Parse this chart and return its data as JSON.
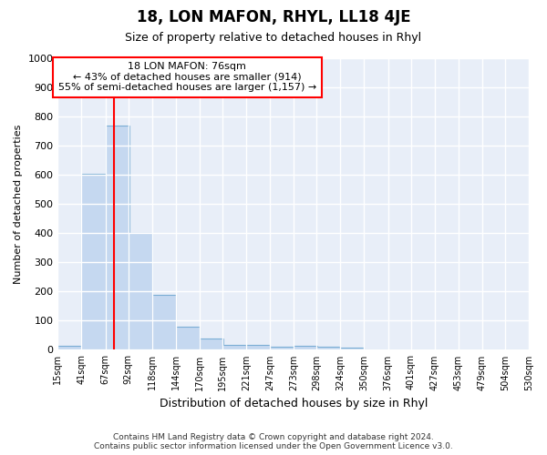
{
  "title": "18, LON MAFON, RHYL, LL18 4JE",
  "subtitle": "Size of property relative to detached houses in Rhyl",
  "xlabel": "Distribution of detached houses by size in Rhyl",
  "ylabel": "Number of detached properties",
  "bar_color": "#c5d8f0",
  "bar_edge_color": "#7aadd4",
  "background_color": "#e8eef8",
  "grid_color": "white",
  "property_line_color": "red",
  "property_value": 76,
  "annotation_line1": "18 LON MAFON: 76sqm",
  "annotation_line2": "← 43% of detached houses are smaller (914)",
  "annotation_line3": "55% of semi-detached houses are larger (1,157) →",
  "bins": [
    15,
    41,
    67,
    92,
    118,
    144,
    170,
    195,
    221,
    247,
    273,
    298,
    324,
    350,
    376,
    401,
    427,
    453,
    479,
    504,
    530
  ],
  "bar_heights": [
    15,
    605,
    770,
    400,
    190,
    78,
    40,
    18,
    18,
    10,
    14,
    10,
    8,
    0,
    0,
    0,
    0,
    0,
    0,
    0
  ],
  "ylim": [
    0,
    1000
  ],
  "yticks": [
    0,
    100,
    200,
    300,
    400,
    500,
    600,
    700,
    800,
    900,
    1000
  ],
  "footer_text": "Contains HM Land Registry data © Crown copyright and database right 2024.\nContains public sector information licensed under the Open Government Licence v3.0.",
  "annotation_box_color": "white",
  "annotation_box_edge": "red"
}
